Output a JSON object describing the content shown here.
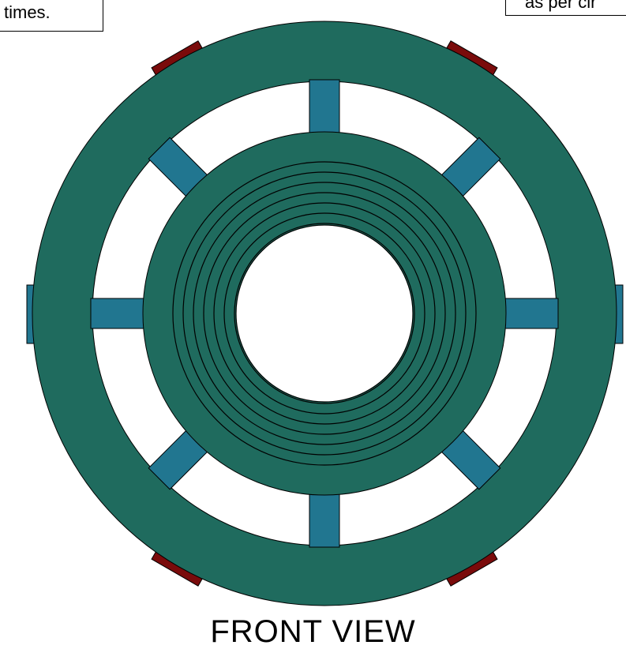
{
  "notes": {
    "left": "times.",
    "right": "as per clr"
  },
  "caption": "FRONT VIEW",
  "colors": {
    "ring": "#1f6b5e",
    "spoke": "#217690",
    "clamp": "#7a0b0b",
    "outline": "#000000",
    "background": "#ffffff"
  },
  "winding_layers": 7,
  "spokes": 8,
  "clamps": 4
}
